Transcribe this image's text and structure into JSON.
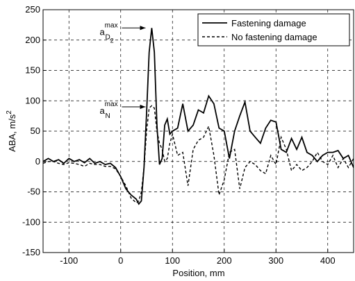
{
  "chart_data": {
    "type": "line",
    "xlabel": "Position, mm",
    "ylabel": "ABA, m/s",
    "ylabel_sup": "2",
    "xlim": [
      -150,
      450
    ],
    "ylim": [
      -150,
      250
    ],
    "xticks": [
      -100,
      0,
      100,
      200,
      300,
      400
    ],
    "yticks": [
      -150,
      -100,
      -50,
      0,
      50,
      100,
      150,
      200,
      250
    ],
    "grid": true,
    "legend": "upper right",
    "x": [
      -150,
      -140,
      -130,
      -120,
      -110,
      -100,
      -90,
      -80,
      -70,
      -60,
      -50,
      -40,
      -30,
      -20,
      -10,
      0,
      10,
      20,
      30,
      35,
      40,
      45,
      50,
      55,
      60,
      65,
      70,
      75,
      80,
      85,
      90,
      95,
      100,
      110,
      120,
      130,
      140,
      150,
      160,
      170,
      180,
      190,
      200,
      210,
      220,
      230,
      240,
      250,
      260,
      270,
      280,
      290,
      300,
      310,
      320,
      330,
      340,
      350,
      360,
      370,
      380,
      390,
      400,
      410,
      420,
      430,
      440,
      450
    ],
    "series": [
      {
        "name": "Fastening damage",
        "color": "#000000",
        "dash": "solid",
        "values": [
          0,
          5,
          0,
          3,
          -3,
          5,
          0,
          3,
          -2,
          5,
          -3,
          0,
          -5,
          -3,
          -10,
          -25,
          -45,
          -55,
          -62,
          -70,
          -65,
          -10,
          80,
          180,
          220,
          180,
          60,
          -5,
          5,
          60,
          70,
          45,
          50,
          55,
          95,
          50,
          60,
          85,
          80,
          108,
          95,
          55,
          50,
          5,
          50,
          75,
          98,
          50,
          40,
          30,
          55,
          68,
          65,
          20,
          15,
          38,
          20,
          40,
          15,
          10,
          0,
          10,
          15,
          15,
          18,
          5,
          10,
          -10
        ]
      },
      {
        "name": "No fastening damage",
        "color": "#000000",
        "dash": "dashed",
        "values": [
          -3,
          0,
          0,
          -3,
          -5,
          -2,
          -3,
          -5,
          -8,
          -3,
          -5,
          -5,
          -8,
          -8,
          -12,
          -25,
          -40,
          -60,
          -68,
          -65,
          -50,
          -10,
          50,
          88,
          92,
          88,
          50,
          30,
          20,
          0,
          5,
          30,
          45,
          10,
          15,
          -40,
          20,
          35,
          40,
          58,
          10,
          -55,
          -30,
          15,
          20,
          -45,
          -10,
          0,
          -5,
          -15,
          -20,
          10,
          -5,
          40,
          20,
          -15,
          -5,
          -15,
          -10,
          0,
          15,
          0,
          -5,
          10,
          -10,
          5,
          -10,
          5
        ]
      }
    ],
    "annotations": [
      {
        "base": "a",
        "sub": "D",
        "subsub": "2",
        "sup": "max",
        "x": 60,
        "y": 220
      },
      {
        "base": "a",
        "sub": "N",
        "sup": "max",
        "x": 60,
        "y": 90
      }
    ]
  }
}
